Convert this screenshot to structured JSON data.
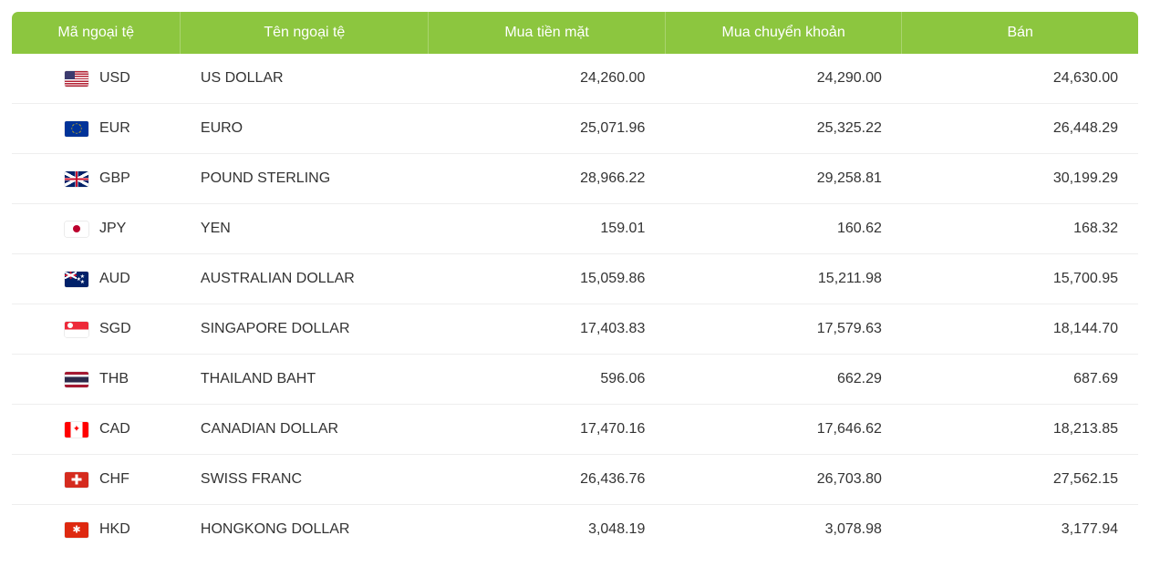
{
  "table": {
    "header_bg": "#8cc63f",
    "header_fg": "#ffffff",
    "row_border": "#eeeeee",
    "text_color": "#333333",
    "columns": [
      {
        "key": "code",
        "label": "Mã ngoại tệ",
        "align": "left"
      },
      {
        "key": "name",
        "label": "Tên ngoại tệ",
        "align": "left"
      },
      {
        "key": "cash",
        "label": "Mua tiền mặt",
        "align": "right"
      },
      {
        "key": "transfer",
        "label": "Mua chuyển khoản",
        "align": "right"
      },
      {
        "key": "sell",
        "label": "Bán",
        "align": "right"
      }
    ],
    "rows": [
      {
        "code": "USD",
        "name": "US DOLLAR",
        "cash": "24,260.00",
        "transfer": "24,290.00",
        "sell": "24,630.00"
      },
      {
        "code": "EUR",
        "name": "EURO",
        "cash": "25,071.96",
        "transfer": "25,325.22",
        "sell": "26,448.29"
      },
      {
        "code": "GBP",
        "name": "POUND STERLING",
        "cash": "28,966.22",
        "transfer": "29,258.81",
        "sell": "30,199.29"
      },
      {
        "code": "JPY",
        "name": "YEN",
        "cash": "159.01",
        "transfer": "160.62",
        "sell": "168.32"
      },
      {
        "code": "AUD",
        "name": "AUSTRALIAN DOLLAR",
        "cash": "15,059.86",
        "transfer": "15,211.98",
        "sell": "15,700.95"
      },
      {
        "code": "SGD",
        "name": "SINGAPORE DOLLAR",
        "cash": "17,403.83",
        "transfer": "17,579.63",
        "sell": "18,144.70"
      },
      {
        "code": "THB",
        "name": "THAILAND BAHT",
        "cash": "596.06",
        "transfer": "662.29",
        "sell": "687.69"
      },
      {
        "code": "CAD",
        "name": "CANADIAN DOLLAR",
        "cash": "17,470.16",
        "transfer": "17,646.62",
        "sell": "18,213.85"
      },
      {
        "code": "CHF",
        "name": "SWISS FRANC",
        "cash": "26,436.76",
        "transfer": "26,703.80",
        "sell": "27,562.15"
      },
      {
        "code": "HKD",
        "name": "HONGKONG DOLLAR",
        "cash": "3,048.19",
        "transfer": "3,078.98",
        "sell": "3,177.94"
      }
    ]
  }
}
